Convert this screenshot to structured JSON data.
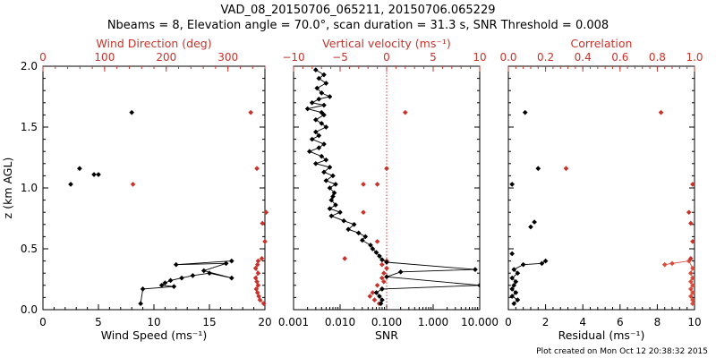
{
  "title_line1": "VAD_08_20150706_065211, 20150706.065229",
  "title_line2": "Nbeams = 8, Elevation angle = 70.0°, scan duration = 31.3 s, SNR Threshold = 0.008",
  "footer": "Plot created on Mon Oct 12 20:38:32 2015",
  "colors": {
    "black": "#000000",
    "red": "#c8322a",
    "red_line": "#d94b3c"
  },
  "chart_data": [
    {
      "type": "scatter",
      "name": "panel-wind",
      "ylabel": "z (km AGL)",
      "ylim": [
        0,
        2.0
      ],
      "yticks": [
        "0.0",
        "0.5",
        "1.0",
        "1.5",
        "2.0"
      ],
      "bottom_axis": {
        "label": "Wind Speed (ms⁻¹)",
        "range": [
          0,
          20
        ],
        "ticks": [
          "0",
          "5",
          "10",
          "15",
          "20"
        ]
      },
      "top_axis": {
        "label": "Wind Direction (deg)",
        "range": [
          0,
          360
        ],
        "ticks": [
          "0",
          "100",
          "200",
          "300"
        ]
      },
      "speed_scatter": [
        [
          8.0,
          1.62
        ],
        [
          3.3,
          1.16
        ],
        [
          5.0,
          1.11
        ],
        [
          4.6,
          1.11
        ],
        [
          2.5,
          1.03
        ]
      ],
      "speed_profile": [
        [
          17.0,
          0.4
        ],
        [
          12.0,
          0.37
        ],
        [
          16.5,
          0.38
        ],
        [
          14.5,
          0.32
        ],
        [
          17.0,
          0.26
        ],
        [
          15.0,
          0.3
        ],
        [
          13.5,
          0.28
        ],
        [
          12.5,
          0.26
        ],
        [
          11.5,
          0.24
        ],
        [
          11.0,
          0.22
        ],
        [
          10.7,
          0.2
        ],
        [
          11.8,
          0.19
        ],
        [
          9.0,
          0.17
        ],
        [
          8.8,
          0.05
        ]
      ],
      "direction_scatter": [
        [
          337,
          1.62
        ],
        [
          347,
          1.16
        ],
        [
          146,
          1.03
        ],
        [
          362,
          0.8
        ],
        [
          356,
          0.71
        ],
        [
          360,
          0.56
        ],
        [
          355,
          0.42
        ]
      ],
      "direction_profile": [
        [
          349,
          0.4
        ],
        [
          348,
          0.37
        ],
        [
          345,
          0.34
        ],
        [
          349,
          0.3
        ],
        [
          345,
          0.26
        ],
        [
          347,
          0.23
        ],
        [
          349,
          0.2
        ],
        [
          346,
          0.17
        ],
        [
          348,
          0.14
        ],
        [
          350,
          0.11
        ],
        [
          352,
          0.08
        ],
        [
          358,
          0.05
        ]
      ]
    },
    {
      "type": "line",
      "name": "panel-snr",
      "ylim": [
        0,
        2.0
      ],
      "bottom_axis": {
        "label": "SNR",
        "scale": "log",
        "range": [
          0.001,
          10
        ],
        "ticks": [
          "0.001",
          "0.010",
          "0.100",
          "1.000",
          "10.000"
        ]
      },
      "top_axis": {
        "label": "Vertical velocity (ms⁻¹)",
        "range": [
          -10,
          10
        ],
        "ticks": [
          "−10",
          "−5",
          "0",
          "5",
          "10"
        ]
      },
      "snr_profile": [
        [
          0.003,
          1.97
        ],
        [
          0.0045,
          1.93
        ],
        [
          0.0035,
          1.9
        ],
        [
          0.005,
          1.86
        ],
        [
          0.0032,
          1.82
        ],
        [
          0.004,
          1.78
        ],
        [
          0.006,
          1.75
        ],
        [
          0.0035,
          1.73
        ],
        [
          0.0025,
          1.7
        ],
        [
          0.0045,
          1.68
        ],
        [
          0.002,
          1.65
        ],
        [
          0.004,
          1.62
        ],
        [
          0.0045,
          1.6
        ],
        [
          0.003,
          1.56
        ],
        [
          0.004,
          1.53
        ],
        [
          0.005,
          1.5
        ],
        [
          0.003,
          1.46
        ],
        [
          0.0035,
          1.43
        ],
        [
          0.0025,
          1.4
        ],
        [
          0.0045,
          1.36
        ],
        [
          0.0035,
          1.33
        ],
        [
          0.0022,
          1.3
        ],
        [
          0.004,
          1.26
        ],
        [
          0.005,
          1.23
        ],
        [
          0.003,
          1.2
        ],
        [
          0.006,
          1.17
        ],
        [
          0.0045,
          1.13
        ],
        [
          0.007,
          1.1
        ],
        [
          0.005,
          1.06
        ],
        [
          0.008,
          1.03
        ],
        [
          0.006,
          1.0
        ],
        [
          0.0075,
          0.96
        ],
        [
          0.007,
          0.93
        ],
        [
          0.0065,
          0.9
        ],
        [
          0.008,
          0.86
        ],
        [
          0.006,
          0.83
        ],
        [
          0.01,
          0.8
        ],
        [
          0.0065,
          0.77
        ],
        [
          0.012,
          0.73
        ],
        [
          0.02,
          0.7
        ],
        [
          0.015,
          0.66
        ],
        [
          0.025,
          0.63
        ],
        [
          0.035,
          0.6
        ],
        [
          0.03,
          0.57
        ],
        [
          0.045,
          0.53
        ],
        [
          0.05,
          0.5
        ],
        [
          0.06,
          0.47
        ],
        [
          0.07,
          0.44
        ],
        [
          0.08,
          0.41
        ],
        [
          0.1,
          0.39
        ],
        [
          8.0,
          0.33
        ],
        [
          0.2,
          0.31
        ],
        [
          0.1,
          0.27
        ],
        [
          10.0,
          0.2
        ],
        [
          0.08,
          0.17
        ],
        [
          0.06,
          0.14
        ],
        [
          0.07,
          0.11
        ],
        [
          0.08,
          0.08
        ],
        [
          0.075,
          0.05
        ]
      ],
      "vertical_velocity": [
        [
          2.0,
          1.62
        ],
        [
          0.0,
          1.16
        ],
        [
          -2.5,
          1.03
        ],
        [
          -1.0,
          1.03
        ],
        [
          -2.5,
          0.8
        ],
        [
          -1.0,
          0.56
        ],
        [
          -4.5,
          0.42
        ],
        [
          0.0,
          0.4
        ],
        [
          -0.5,
          0.37
        ],
        [
          0.0,
          0.34
        ],
        [
          -0.3,
          0.3
        ],
        [
          -0.5,
          0.26
        ],
        [
          -0.3,
          0.23
        ],
        [
          -1.0,
          0.2
        ],
        [
          -0.5,
          0.17
        ],
        [
          -1.5,
          0.14
        ],
        [
          -1.8,
          0.11
        ],
        [
          -1.3,
          0.08
        ],
        [
          -0.8,
          0.05
        ]
      ]
    },
    {
      "type": "scatter",
      "name": "panel-residual",
      "ylim": [
        0,
        2.0
      ],
      "bottom_axis": {
        "label": "Residual (ms⁻¹)",
        "range": [
          0,
          10
        ],
        "ticks": [
          "0",
          "2",
          "4",
          "6",
          "8",
          "10"
        ]
      },
      "top_axis": {
        "label": "Correlation",
        "range": [
          0,
          1.0
        ],
        "ticks": [
          "0.0",
          "0.2",
          "0.4",
          "0.6",
          "0.8",
          "1.0"
        ]
      },
      "residual_scatter": [
        [
          0.9,
          1.62
        ],
        [
          1.6,
          1.16
        ],
        [
          0.2,
          1.03
        ],
        [
          1.4,
          0.72
        ],
        [
          1.2,
          0.68
        ],
        [
          0.2,
          0.46
        ]
      ],
      "residual_profile": [
        [
          2.0,
          0.4
        ],
        [
          1.8,
          0.38
        ],
        [
          0.8,
          0.37
        ],
        [
          0.3,
          0.33
        ],
        [
          0.5,
          0.3
        ],
        [
          0.2,
          0.26
        ],
        [
          0.4,
          0.23
        ],
        [
          0.3,
          0.2
        ],
        [
          0.2,
          0.17
        ],
        [
          0.4,
          0.14
        ],
        [
          0.2,
          0.11
        ],
        [
          0.5,
          0.08
        ],
        [
          0.3,
          0.05
        ]
      ],
      "correlation_scatter": [
        [
          0.82,
          1.62
        ],
        [
          0.31,
          1.16
        ],
        [
          0.99,
          1.03
        ],
        [
          0.97,
          0.8
        ],
        [
          0.98,
          0.71
        ],
        [
          0.99,
          0.56
        ],
        [
          0.98,
          0.42
        ]
      ],
      "correlation_profile": [
        [
          0.84,
          0.37
        ],
        [
          0.88,
          0.38
        ],
        [
          0.97,
          0.4
        ],
        [
          0.99,
          0.34
        ],
        [
          0.98,
          0.3
        ],
        [
          0.99,
          0.26
        ],
        [
          0.98,
          0.23
        ],
        [
          0.99,
          0.2
        ],
        [
          0.98,
          0.17
        ],
        [
          0.99,
          0.14
        ],
        [
          0.98,
          0.11
        ],
        [
          0.99,
          0.08
        ],
        [
          0.99,
          0.05
        ]
      ]
    }
  ]
}
